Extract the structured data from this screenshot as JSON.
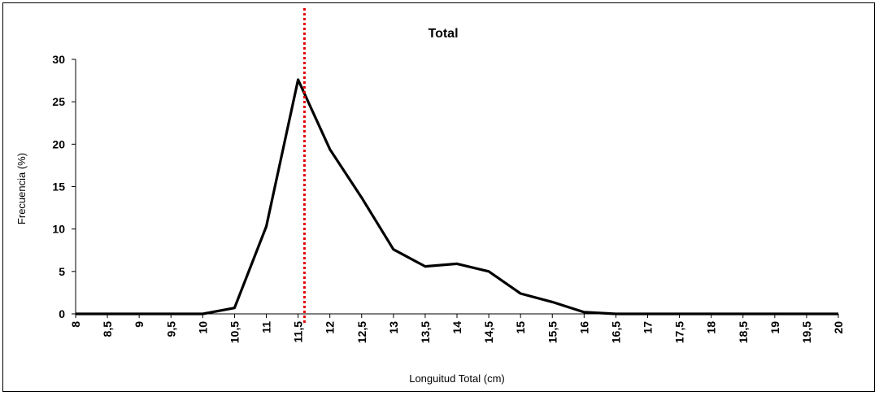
{
  "chart_data": {
    "type": "line",
    "title": "Total",
    "xlabel": "Longuitud Total (cm)",
    "ylabel": "Frecuencia  (%)",
    "categories": [
      "8",
      "8,5",
      "9",
      "9,5",
      "10",
      "10,5",
      "11",
      "11,5",
      "12",
      "12,5",
      "13",
      "13,5",
      "14",
      "14,5",
      "15",
      "15,5",
      "16",
      "16,5",
      "17",
      "17,5",
      "18",
      "18,5",
      "19",
      "19,5",
      "20"
    ],
    "x": [
      8,
      8.5,
      9,
      9.5,
      10,
      10.5,
      11,
      11.5,
      12,
      12.5,
      13,
      13.5,
      14,
      14.5,
      15,
      15.5,
      16,
      16.5,
      17,
      17.5,
      18,
      18.5,
      19,
      19.5,
      20
    ],
    "series": [
      {
        "values": [
          0,
          0,
          0,
          0,
          0,
          0.7,
          10.3,
          27.6,
          19.4,
          13.7,
          7.6,
          5.6,
          5.9,
          5.0,
          2.4,
          1.4,
          0.2,
          0,
          0,
          0,
          0,
          0,
          0,
          0,
          0
        ]
      }
    ],
    "reference_line": {
      "x": 11.6,
      "color": "#e00000",
      "style": "dotted"
    },
    "ylim": [
      0,
      30
    ],
    "yticks": [
      "0",
      "5",
      "10",
      "15",
      "20",
      "25",
      "30"
    ],
    "xlim": [
      8,
      20
    ],
    "line_color": "#000000",
    "grid": false,
    "legend": "none"
  }
}
